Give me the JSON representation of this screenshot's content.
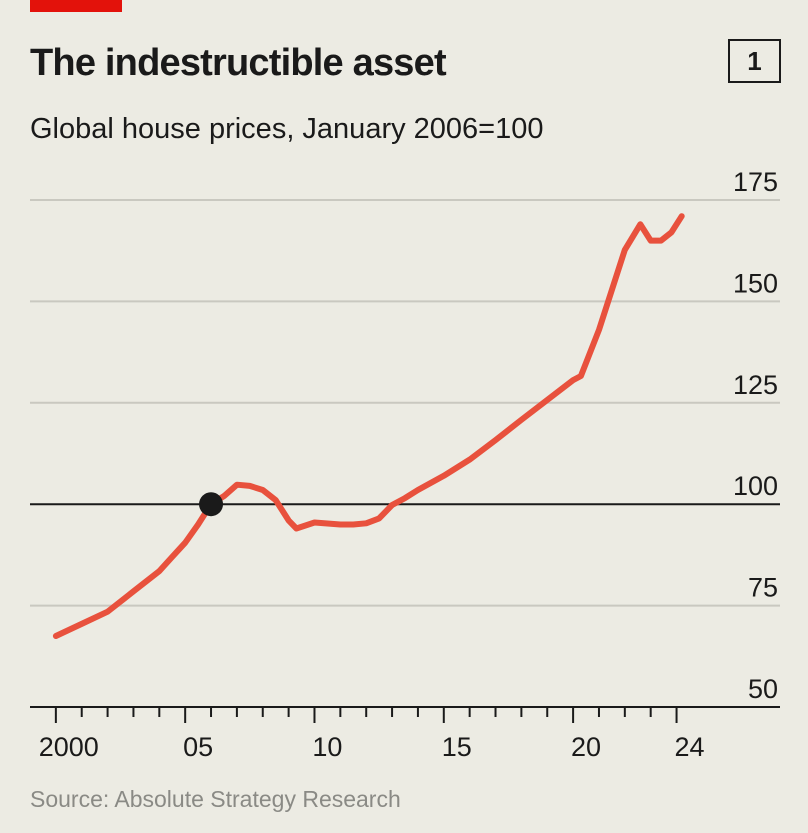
{
  "chart_data": {
    "type": "line",
    "title": "The indestructible asset",
    "chart_number": "1",
    "subtitle": "Global house prices, January 2006=100",
    "source": "Source: Absolute Strategy Research",
    "x": [
      2000.0,
      2001.0,
      2002.0,
      2003.0,
      2004.0,
      2004.5,
      2005.0,
      2005.5,
      2006.0,
      2006.5,
      2007.0,
      2007.5,
      2008.0,
      2008.5,
      2009.0,
      2009.3,
      2010.0,
      2011.0,
      2011.5,
      2012.0,
      2012.5,
      2013.0,
      2013.5,
      2014.0,
      2015.0,
      2016.0,
      2017.0,
      2018.0,
      2019.0,
      2020.0,
      2020.3,
      2021.0,
      2022.0,
      2022.6,
      2023.0,
      2023.4,
      2023.8,
      2024.2
    ],
    "series": [
      {
        "name": "Global house prices",
        "color": "#e8513d",
        "values": [
          67.5,
          70.5,
          73.5,
          78.5,
          83.5,
          87,
          90.5,
          95,
          100,
          102,
          104.8,
          104.5,
          103.5,
          101,
          96,
          94,
          95.5,
          95,
          95,
          95.3,
          96.5,
          99.8,
          101.5,
          103.5,
          107,
          111,
          115.8,
          120.8,
          125.7,
          130.6,
          131.6,
          143,
          162.7,
          169,
          165,
          165,
          167,
          171
        ]
      }
    ],
    "highlight": {
      "x": 2006,
      "value": 100,
      "color": "#1a1a1a"
    },
    "xlim": [
      1999,
      2028
    ],
    "xticks": [
      2000,
      {
        "value": 2005,
        "label": "05"
      },
      {
        "value": 2010,
        "label": "10"
      },
      {
        "value": 2015,
        "label": "15"
      },
      {
        "value": 2020,
        "label": "20"
      },
      {
        "value": 2024,
        "label": "24"
      }
    ],
    "xminorticks": [
      2001,
      2002,
      2003,
      2004,
      2006,
      2007,
      2008,
      2009,
      2011,
      2012,
      2013,
      2014,
      2016,
      2017,
      2018,
      2019,
      2021,
      2022,
      2023
    ],
    "ylim": [
      50,
      175
    ],
    "yticks": [
      50,
      75,
      100,
      125,
      150,
      175
    ],
    "baseline": 100,
    "grid": true
  }
}
